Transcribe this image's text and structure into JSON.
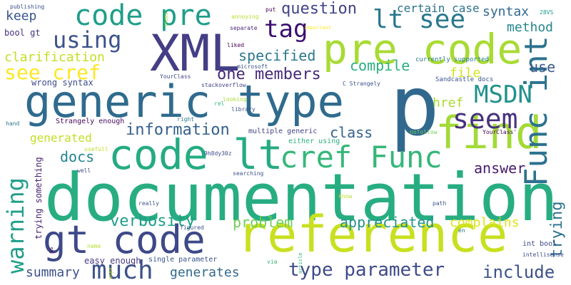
{
  "words": [
    {
      "text": "documentation",
      "color": "#27ad81",
      "vertical": false
    },
    {
      "text": "p",
      "color": "#31688e",
      "vertical": false
    },
    {
      "text": "reference",
      "color": "#c8e020",
      "vertical": false
    },
    {
      "text": "generic type",
      "color": "#2f6b8e",
      "vertical": false
    },
    {
      "text": "code lt",
      "color": "#25ab82",
      "vertical": false
    },
    {
      "text": "gt code",
      "color": "#3e4989",
      "vertical": false
    },
    {
      "text": "XML",
      "color": "#433e85",
      "vertical": false
    },
    {
      "text": "pre code",
      "color": "#a8db34",
      "vertical": false
    },
    {
      "text": "find",
      "color": "#a2da37",
      "vertical": false
    },
    {
      "text": "code pre",
      "color": "#1f9e89",
      "vertical": false
    },
    {
      "text": "cref Func",
      "color": "#35b779",
      "vertical": false
    },
    {
      "text": "Func int",
      "color": "#2c728e",
      "vertical": true
    },
    {
      "text": "MSDN",
      "color": "#21918c",
      "vertical": false
    },
    {
      "text": "seem",
      "color": "#46327e",
      "vertical": false
    },
    {
      "text": "much",
      "color": "#3b528b",
      "vertical": false
    },
    {
      "text": "warning",
      "color": "#1f9e89",
      "vertical": true
    },
    {
      "text": "lt see",
      "color": "#2a788e",
      "vertical": false
    },
    {
      "text": "using",
      "color": "#3b528b",
      "vertical": false
    },
    {
      "text": "see cref",
      "color": "#fde725",
      "vertical": false
    },
    {
      "text": "tag",
      "color": "#3b0f70",
      "vertical": false
    },
    {
      "text": "type parameter",
      "color": "#3e4a89",
      "vertical": false
    },
    {
      "text": "include",
      "color": "#3b528b",
      "vertical": false
    },
    {
      "text": "information",
      "color": "#35608d",
      "vertical": false
    },
    {
      "text": "verbosity",
      "color": "#1f9e89",
      "vertical": false
    },
    {
      "text": "problem",
      "color": "#6ece58",
      "vertical": false
    },
    {
      "text": "appreciated",
      "color": "#20928c",
      "vertical": false
    },
    {
      "text": "complains",
      "color": "#dde318",
      "vertical": false
    },
    {
      "text": "question",
      "color": "#414487",
      "vertical": false
    },
    {
      "text": "specified",
      "color": "#29788e",
      "vertical": false
    },
    {
      "text": "one members",
      "color": "#482979",
      "vertical": false
    },
    {
      "text": "compile",
      "color": "#29af7f",
      "vertical": false
    },
    {
      "text": "use",
      "color": "#38598c",
      "vertical": false
    },
    {
      "text": "class",
      "color": "#33638d",
      "vertical": false
    },
    {
      "text": "answer",
      "color": "#481a6c",
      "vertical": false
    },
    {
      "text": "trying",
      "color": "#2c718e",
      "vertical": true
    },
    {
      "text": "summary",
      "color": "#3b518b",
      "vertical": false
    },
    {
      "text": "generates",
      "color": "#31688e",
      "vertical": false
    },
    {
      "text": "docs",
      "color": "#24868e",
      "vertical": false
    },
    {
      "text": "generated",
      "color": "#c2df23",
      "vertical": false
    },
    {
      "text": "syntax",
      "color": "#31688e",
      "vertical": false
    },
    {
      "text": "method",
      "color": "#24878e",
      "vertical": false
    },
    {
      "text": "certain case",
      "color": "#2c728e",
      "vertical": false
    },
    {
      "text": "file",
      "color": "#d2e21b",
      "vertical": false
    },
    {
      "text": "href",
      "color": "#a8db34",
      "vertical": false
    },
    {
      "text": "keep",
      "color": "#39568c",
      "vertical": false
    },
    {
      "text": "clarification",
      "color": "#c2df23",
      "vertical": false
    },
    {
      "text": "wrong syntax",
      "color": "#3e4c8a",
      "vertical": false
    },
    {
      "text": "Strangely enough",
      "color": "#46085c",
      "vertical": false
    },
    {
      "text": "multiple generic",
      "color": "#414487",
      "vertical": false
    },
    {
      "text": "either using",
      "color": "#2db27d",
      "vertical": false
    },
    {
      "text": "easy enough",
      "color": "#453882",
      "vertical": false
    },
    {
      "text": "single parameter",
      "color": "#3a548c",
      "vertical": false
    },
    {
      "text": "int bool",
      "color": "#3e4a89",
      "vertical": false
    },
    {
      "text": "currently supported",
      "color": "#287c8e",
      "vertical": false
    },
    {
      "text": "Sandcastle docs",
      "color": "#3b528b",
      "vertical": false
    },
    {
      "text": "trying something",
      "color": "#482374",
      "vertical": true
    },
    {
      "text": "bool gt",
      "color": "#46307e",
      "vertical": false
    },
    {
      "text": "publishing",
      "color": "#3b528b",
      "vertical": false
    },
    {
      "text": "stems",
      "color": "#a0da39",
      "vertical": true
    },
    {
      "text": "annoying",
      "color": "#b5de2b",
      "vertical": false
    },
    {
      "text": "put",
      "color": "#440154",
      "vertical": false
    },
    {
      "text": "28VS",
      "color": "#1f988b",
      "vertical": false
    },
    {
      "text": "important",
      "color": "#fde725",
      "vertical": false
    },
    {
      "text": "separate",
      "color": "#482878",
      "vertical": false
    },
    {
      "text": "liked",
      "color": "#440154",
      "vertical": false
    },
    {
      "text": "microsoft",
      "color": "#3b528b",
      "vertical": false
    },
    {
      "text": "YourClass",
      "color": "#3f4788",
      "vertical": false
    },
    {
      "text": "stackoverflow",
      "color": "#404588",
      "vertical": false
    },
    {
      "text": "C Strangely",
      "color": "#3b528b",
      "vertical": false
    },
    {
      "text": "rel",
      "color": "#38b977",
      "vertical": false
    },
    {
      "text": "looking",
      "color": "#a8db34",
      "vertical": false
    },
    {
      "text": "library",
      "color": "#3b528b",
      "vertical": false
    },
    {
      "text": "right",
      "color": "#2a788e",
      "vertical": false
    },
    {
      "text": "hand",
      "color": "#2a788e",
      "vertical": false
    },
    {
      "text": "nofollow",
      "color": "#6ece58",
      "vertical": false
    },
    {
      "text": "YourClass'",
      "color": "#440154",
      "vertical": false
    },
    {
      "text": "usefull",
      "color": "#bddf26",
      "vertical": false
    },
    {
      "text": "9h8dy30z",
      "color": "#3e4989",
      "vertical": false
    },
    {
      "text": "well",
      "color": "#3e4c8a",
      "vertical": false
    },
    {
      "text": "searching",
      "color": "#3b528b",
      "vertical": false
    },
    {
      "text": "know",
      "color": "#b8de29",
      "vertical": false
    },
    {
      "text": "really",
      "color": "#3b528b",
      "vertical": false
    },
    {
      "text": "path",
      "color": "#3b528b",
      "vertical": false
    },
    {
      "text": "figured",
      "color": "#3b528b",
      "vertical": false
    },
    {
      "text": "en",
      "color": "#2a788e",
      "vertical": false
    },
    {
      "text": "name",
      "color": "#b5de2b",
      "vertical": false
    },
    {
      "text": "aspx",
      "color": "#c2df23",
      "vertical": true
    },
    {
      "text": "article",
      "color": "#2db27d",
      "vertical": true
    },
    {
      "text": "via",
      "color": "#35b779",
      "vertical": false
    },
    {
      "text": "us",
      "color": "#440154",
      "vertical": true
    },
    {
      "text": "intellisense",
      "color": "#3e4989",
      "vertical": false
    }
  ]
}
